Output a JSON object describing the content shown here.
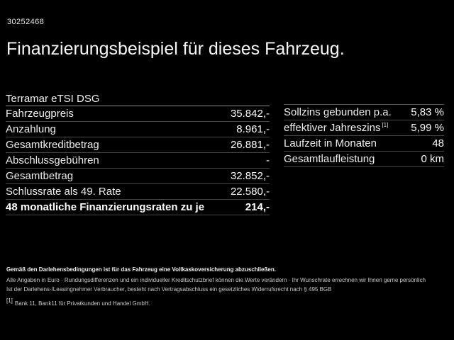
{
  "colors": {
    "background": "#000000",
    "text": "#f5f5f5",
    "divider": "#464646",
    "subtitle_divider": "#8a8a8a"
  },
  "header": {
    "vehicle_id": "30252468",
    "title": "Finanzierungsbeispiel für dieses Fahrzeug."
  },
  "finance_table": {
    "model": "Terramar eTSI DSG",
    "rows": [
      {
        "label": "Fahrzeugpreis",
        "value": "35.842,-"
      },
      {
        "label": "Anzahlung",
        "value": "8.961,-"
      },
      {
        "label": "Gesamtkreditbetrag",
        "value": "26.881,-"
      },
      {
        "label": "Abschlussgebühren",
        "value": "-"
      },
      {
        "label": "Gesamtbetrag",
        "value": "32.852,-"
      },
      {
        "label": "Schlussrate als 49. Rate",
        "value": "22.580,-"
      },
      {
        "label": "48 monatliche Finanzierungsraten zu je",
        "value": "214,-"
      }
    ]
  },
  "conditions_table": {
    "rows": [
      {
        "label": "Sollzins gebunden p.a.",
        "sup": "",
        "value": "5,83 %"
      },
      {
        "label": "effektiver Jahreszins",
        "sup": "[1]",
        "value": "5,99 %"
      },
      {
        "label": "Laufzeit in Monaten",
        "sup": "",
        "value": "48"
      },
      {
        "label": "Gesamtlaufleistung",
        "sup": "",
        "value": "0 km"
      }
    ]
  },
  "footer": {
    "line1": "Gemäß den Darlehensbedingungen ist für das Fahrzeug eine Vollkaskoversicherung abzuschließen.",
    "line2": "Alle Angaben in Euro · Rundungsdifferenzen und ein individueller Kreditschutzbrief können die Werte verändern · Ihr Wunschrate errechnen wir Ihnen gerne persönlich",
    "line3": "Ist der Darlehens-/Leasingnehmer Verbraucher, besteht nach Vertragsabschluss ein gesetzliches Widerrufsrecht nach § 495 BGB",
    "footnote_marker": "[1]",
    "footnote_text": "Bank 11, Bank11 für Privatkunden und Handel GmbH."
  }
}
